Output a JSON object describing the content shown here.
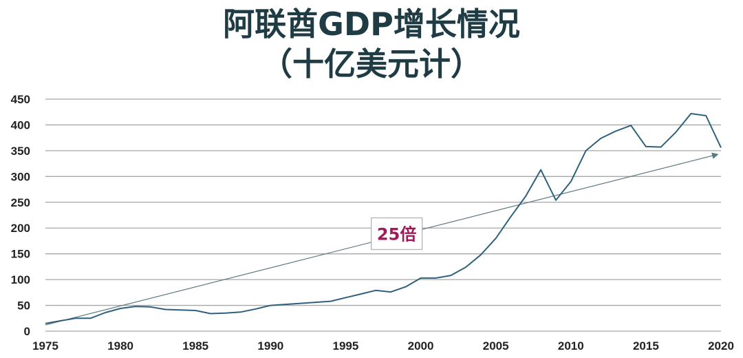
{
  "chart_data": {
    "type": "line",
    "title_line1": "阿联酋GDP增长情况",
    "title_line2": "（十亿美元计）",
    "xlabel": "",
    "ylabel": "",
    "xlim": [
      1975,
      2020
    ],
    "ylim": [
      0,
      450
    ],
    "x_ticks": [
      1975,
      1980,
      1985,
      1990,
      1995,
      2000,
      2005,
      2010,
      2015,
      2020
    ],
    "y_ticks": [
      0,
      50,
      100,
      150,
      200,
      250,
      300,
      350,
      400,
      450
    ],
    "grid": true,
    "series": [
      {
        "name": "GDP",
        "color": "#2e5f7c",
        "points": [
          [
            1975,
            15
          ],
          [
            1976,
            20
          ],
          [
            1977,
            25
          ],
          [
            1978,
            25
          ],
          [
            1979,
            36
          ],
          [
            1980,
            44
          ],
          [
            1981,
            48
          ],
          [
            1982,
            47
          ],
          [
            1983,
            42
          ],
          [
            1984,
            41
          ],
          [
            1985,
            40
          ],
          [
            1986,
            34
          ],
          [
            1987,
            35
          ],
          [
            1988,
            37
          ],
          [
            1989,
            43
          ],
          [
            1990,
            50
          ],
          [
            1991,
            52
          ],
          [
            1992,
            54
          ],
          [
            1993,
            56
          ],
          [
            1994,
            58
          ],
          [
            1995,
            65
          ],
          [
            1996,
            72
          ],
          [
            1997,
            79
          ],
          [
            1998,
            76
          ],
          [
            1999,
            86
          ],
          [
            2000,
            103
          ],
          [
            2001,
            103
          ],
          [
            2002,
            108
          ],
          [
            2003,
            124
          ],
          [
            2004,
            148
          ],
          [
            2005,
            180
          ],
          [
            2006,
            222
          ],
          [
            2007,
            262
          ],
          [
            2008,
            313
          ],
          [
            2009,
            254
          ],
          [
            2010,
            290
          ],
          [
            2011,
            350
          ],
          [
            2012,
            374
          ],
          [
            2013,
            388
          ],
          [
            2014,
            399
          ],
          [
            2015,
            358
          ],
          [
            2016,
            357
          ],
          [
            2017,
            386
          ],
          [
            2018,
            422
          ],
          [
            2019,
            418
          ],
          [
            2020,
            356
          ]
        ]
      }
    ],
    "trend_arrow": {
      "from": [
        1975,
        12
      ],
      "to": [
        2019.8,
        343
      ],
      "color": "#5c7a80"
    },
    "annotation": {
      "text": "25倍",
      "x": 1998.4,
      "y": 189
    }
  }
}
